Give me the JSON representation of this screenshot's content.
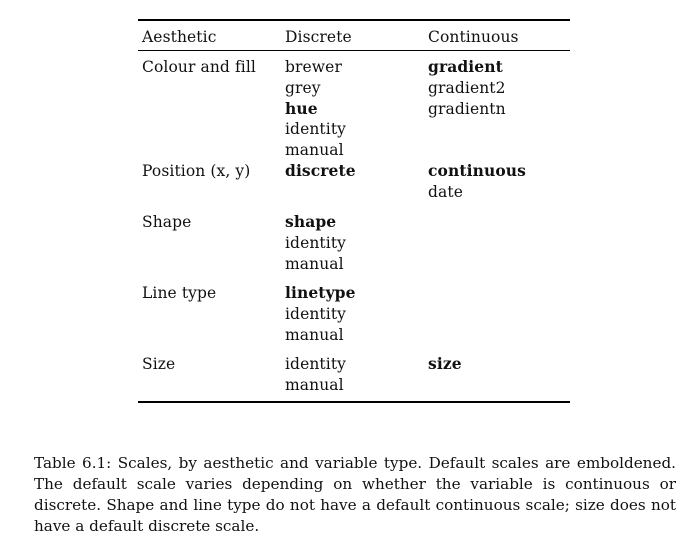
{
  "table": {
    "headers": {
      "aesthetic": "Aesthetic",
      "discrete": "Discrete",
      "continuous": "Continuous"
    },
    "rows": [
      {
        "aesthetic": "Colour and fill",
        "discrete": [
          {
            "text": "brewer",
            "bold": false
          },
          {
            "text": "grey",
            "bold": false
          },
          {
            "text": "hue",
            "bold": true
          },
          {
            "text": "identity",
            "bold": false
          },
          {
            "text": "manual",
            "bold": false
          }
        ],
        "continuous": [
          {
            "text": "gradient",
            "bold": true
          },
          {
            "text": "gradient2",
            "bold": false
          },
          {
            "text": "gradientn",
            "bold": false
          }
        ]
      },
      {
        "aesthetic": "Position (x, y)",
        "discrete": [
          {
            "text": "discrete",
            "bold": true
          }
        ],
        "continuous": [
          {
            "text": "continuous",
            "bold": true
          },
          {
            "text": "date",
            "bold": false
          }
        ]
      },
      {
        "aesthetic": "Shape",
        "discrete": [
          {
            "text": "shape",
            "bold": true
          },
          {
            "text": "identity",
            "bold": false
          },
          {
            "text": "manual",
            "bold": false
          }
        ],
        "continuous": []
      },
      {
        "aesthetic": "Line type",
        "discrete": [
          {
            "text": "linetype",
            "bold": true
          },
          {
            "text": "identity",
            "bold": false
          },
          {
            "text": "manual",
            "bold": false
          }
        ],
        "continuous": []
      },
      {
        "aesthetic": "Size",
        "discrete": [
          {
            "text": "identity",
            "bold": false
          },
          {
            "text": "manual",
            "bold": false
          }
        ],
        "continuous": [
          {
            "text": "size",
            "bold": true
          }
        ]
      }
    ]
  },
  "caption": "Table 6.1: Scales, by aesthetic and variable type. Default scales are emboldened. The default scale varies depending on whether the variable is continuous or discrete. Shape and line type do not have a default continuous scale; size does not have a default discrete scale."
}
